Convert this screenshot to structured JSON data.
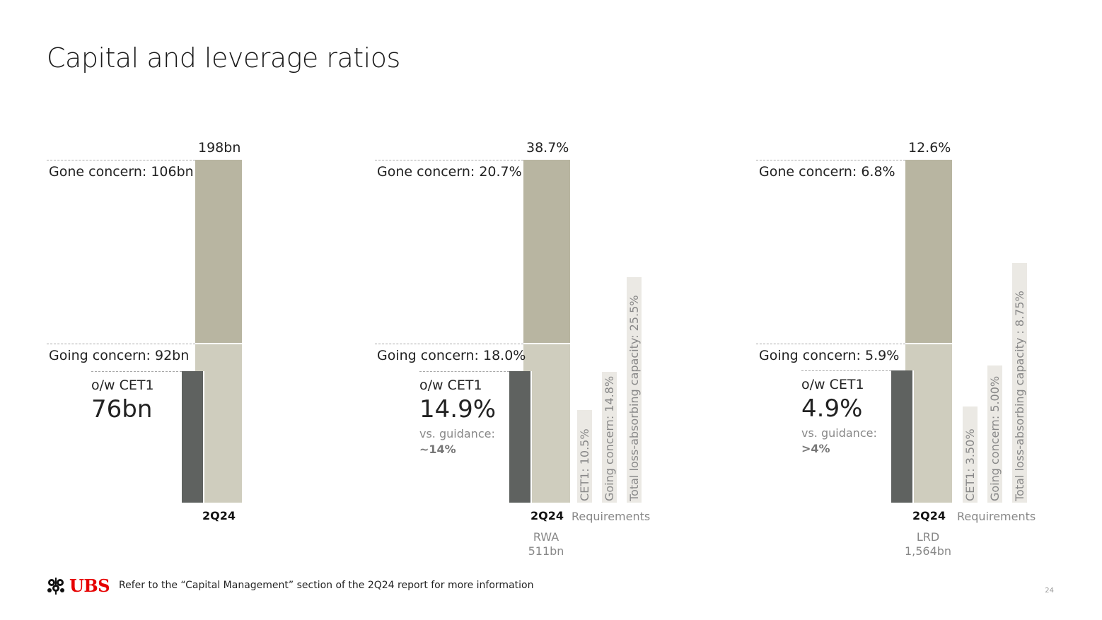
{
  "page": {
    "title": "Capital and leverage ratios",
    "footer_note": "Refer to the “Capital Management” section of the 2Q24 report for more information",
    "page_number": "24"
  },
  "logo": {
    "text": "UBS",
    "icon": "keys-icon",
    "color": "#e60000"
  },
  "colors": {
    "gone": "#b8b5a1",
    "going": "#cfcdbe",
    "cet1": "#5f6260",
    "requirement": "#ebe9e4"
  },
  "chart_data": [
    {
      "type": "bar",
      "categories": [
        "2Q24"
      ],
      "series": [
        {
          "name": "Gone concern",
          "label": "Gone concern: 106bn",
          "values": [
            106
          ]
        },
        {
          "name": "Going concern",
          "label": "Going concern: 92bn",
          "values": [
            92
          ]
        },
        {
          "name": "o/w CET1",
          "label": "o/w CET1",
          "values": [
            76
          ]
        }
      ],
      "total_label": "198bn",
      "total": 198,
      "cet1_value_label": "76bn",
      "guidance": null,
      "base_label": null,
      "requirements": null
    },
    {
      "type": "bar",
      "categories": [
        "2Q24"
      ],
      "series": [
        {
          "name": "Gone concern",
          "label": "Gone concern: 20.7%",
          "values": [
            20.7
          ]
        },
        {
          "name": "Going concern",
          "label": "Going concern: 18.0%",
          "values": [
            18.0
          ]
        },
        {
          "name": "o/w CET1",
          "label": "o/w CET1",
          "values": [
            14.9
          ]
        }
      ],
      "total_label": "38.7%",
      "total": 38.7,
      "cet1_value_label": "14.9%",
      "guidance": {
        "label": "vs. guidance:",
        "value": "~14%"
      },
      "base_label": [
        "RWA",
        "511bn"
      ],
      "requirements": {
        "label": "Requirements",
        "items": [
          {
            "label": "CET1: 10.5%",
            "value": 10.5
          },
          {
            "label": "Going concern: 14.8%",
            "value": 14.8
          },
          {
            "label": "Total loss-absorbing capacity: 25.5%",
            "value": 25.5
          }
        ]
      }
    },
    {
      "type": "bar",
      "categories": [
        "2Q24"
      ],
      "series": [
        {
          "name": "Gone concern",
          "label": "Gone concern: 6.8%",
          "values": [
            6.8
          ]
        },
        {
          "name": "Going concern",
          "label": "Going concern: 5.9%",
          "values": [
            5.9
          ]
        },
        {
          "name": "o/w CET1",
          "label": "o/w CET1",
          "values": [
            4.9
          ]
        }
      ],
      "total_label": "12.6%",
      "total": 12.6,
      "cet1_value_label": "4.9%",
      "guidance": {
        "label": "vs. guidance:",
        "value": ">4%"
      },
      "base_label": [
        "LRD",
        "1,564bn"
      ],
      "requirements": {
        "label": "Requirements",
        "items": [
          {
            "label": "CET1: 3.50%",
            "value": 3.5
          },
          {
            "label": "Going concern: 5.00%",
            "value": 5.0
          },
          {
            "label": "Total loss-absorbing capacity : 8.75%",
            "value": 8.75
          }
        ]
      }
    }
  ]
}
